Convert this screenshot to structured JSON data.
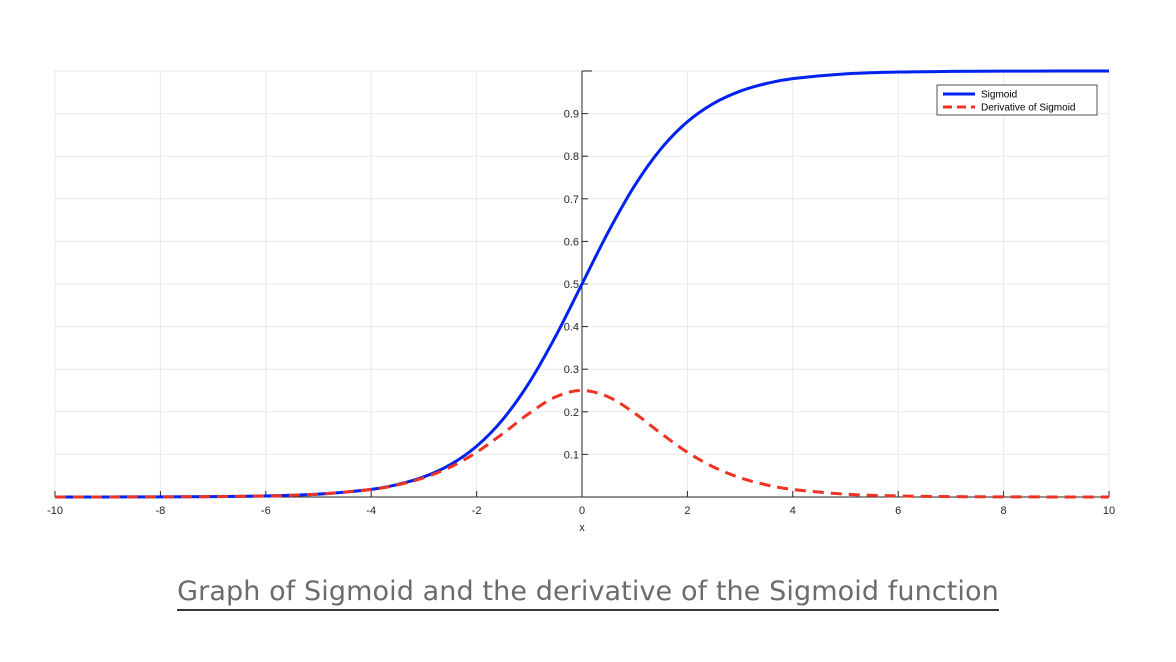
{
  "caption": "Graph of Sigmoid and the derivative of the Sigmoid function",
  "chart_data": {
    "type": "line",
    "title": "",
    "xlabel": "x",
    "ylabel": "",
    "xlim": [
      -10,
      10
    ],
    "ylim": [
      0,
      1
    ],
    "x_ticks": [
      "-10",
      "-8",
      "-6",
      "-4",
      "-2",
      "0",
      "2",
      "4",
      "6",
      "8",
      "10"
    ],
    "y_ticks": [
      "0.1",
      "0.2",
      "0.3",
      "0.4",
      "0.5",
      "0.6",
      "0.7",
      "0.8",
      "0.9"
    ],
    "grid": true,
    "legend_position": "top-right",
    "x": [
      -10,
      -9,
      -8,
      -7,
      -6,
      -5,
      -4,
      -3.5,
      -3,
      -2.5,
      -2,
      -1.5,
      -1,
      -0.5,
      0,
      0.5,
      1,
      1.5,
      2,
      2.5,
      3,
      3.5,
      4,
      5,
      6,
      7,
      8,
      9,
      10
    ],
    "series": [
      {
        "name": "Sigmoid",
        "color": "#0022ee",
        "style": "solid",
        "values": [
          4.54e-05,
          0.000123,
          0.000335,
          0.000911,
          0.00247,
          0.00669,
          0.018,
          0.0293,
          0.0474,
          0.0759,
          0.1192,
          0.1824,
          0.2689,
          0.3775,
          0.5,
          0.6225,
          0.7311,
          0.8176,
          0.8808,
          0.9241,
          0.9526,
          0.9707,
          0.982,
          0.9933,
          0.9975,
          0.9991,
          0.9997,
          0.9999,
          0.99995
        ]
      },
      {
        "name": "Derivative of Sigmoid",
        "color": "#ee3322",
        "style": "dashed",
        "values": [
          4.54e-05,
          0.000123,
          0.000335,
          0.00091,
          0.00247,
          0.00665,
          0.0177,
          0.0285,
          0.0452,
          0.0701,
          0.105,
          0.1491,
          0.1966,
          0.235,
          0.25,
          0.235,
          0.1966,
          0.1491,
          0.105,
          0.0701,
          0.0452,
          0.0285,
          0.0177,
          0.00665,
          0.00247,
          0.00091,
          0.000335,
          0.000123,
          4.54e-05
        ]
      }
    ]
  }
}
